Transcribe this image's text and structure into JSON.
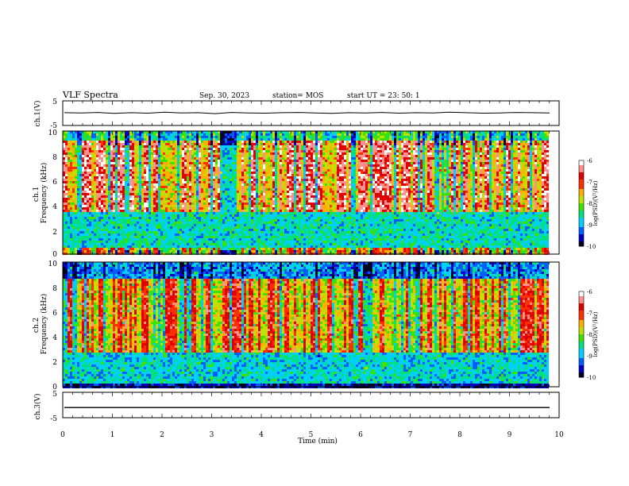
{
  "header": {
    "title": "VLF Spectra",
    "date": "Sep. 30, 2023",
    "station": "station= MOS",
    "start": "start  UT =   23: 50: 1"
  },
  "colorscale": [
    "#000020",
    "#0000c0",
    "#0060ff",
    "#00d0ff",
    "#00e080",
    "#40e000",
    "#c0e000",
    "#ffb000",
    "#ff3000",
    "#e00000",
    "#ff9090",
    "#ffffff"
  ],
  "chart_data": [
    {
      "type": "line",
      "ylabel": "ch.1(V)",
      "ylim": [
        -5,
        5
      ],
      "yticks": [
        "5",
        "-5"
      ],
      "series": [
        {
          "values": [
            0.2,
            0.1,
            0.3,
            -0.1,
            0.2,
            0.0,
            0.4,
            0.1,
            0.2,
            -0.2,
            0.3,
            0.1,
            0.0,
            0.2,
            0.3,
            0.1,
            -0.1,
            0.2,
            0.1,
            0.3,
            0.0,
            0.2,
            0.1,
            0.4,
            0.2,
            0.0,
            0.1,
            0.3,
            0.2,
            0.1
          ]
        }
      ]
    },
    {
      "type": "heatmap",
      "ylabel": "ch.1\nFrequency (kHz)",
      "ylim": [
        0,
        10
      ],
      "yticks": [
        "0",
        "2",
        "4",
        "6",
        "8",
        "10"
      ],
      "colorbar": {
        "label": "log(PSD)(V²/Hz)",
        "ticks": [
          "-6",
          "-7",
          "-8",
          "-9",
          "-10"
        ]
      }
    },
    {
      "type": "heatmap",
      "ylabel": "ch.2\nFrequency (kHz)",
      "ylim": [
        0,
        10
      ],
      "yticks": [
        "0",
        "2",
        "4",
        "6",
        "8",
        "10"
      ],
      "colorbar": {
        "label": "log(PSD)(V²/Hz)",
        "ticks": [
          "-6",
          "-7",
          "-8",
          "-9",
          "-10"
        ]
      }
    },
    {
      "type": "line",
      "ylabel": "ch.3(V)",
      "ylim": [
        -5,
        5
      ],
      "yticks": [
        "5",
        "-5"
      ],
      "xlabel": "Time (min)",
      "xlim": [
        0,
        10
      ],
      "xticks": [
        "0",
        "1",
        "2",
        "3",
        "4",
        "5",
        "6",
        "7",
        "8",
        "9",
        "10"
      ],
      "series": [
        {
          "values": [
            -1.0,
            -1.0,
            -1.0,
            -1.0,
            -1.0,
            -1.0,
            -1.0,
            -1.0,
            -1.0,
            -1.0
          ]
        }
      ]
    }
  ]
}
